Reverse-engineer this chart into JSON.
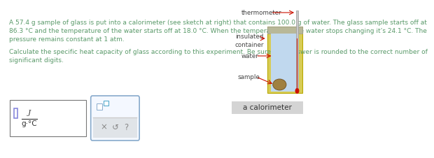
{
  "bg_color": "#ffffff",
  "text_color": "#5a9a6a",
  "main_text_line1": "A 57.4 g sample of glass is put into a calorimeter (see sketch at right) that contains 100.0 g of water. The glass sample starts off at",
  "main_text_line2": "86.3 °C and the temperature of the water starts off at 18.0 °C. When the temperature of the water stops changing it’s 24.1 °C. The",
  "main_text_line3": "pressure remains constant at 1 atm.",
  "calc_text_line1": "Calculate the specific heat capacity of glass according to this experiment. Be sure your answer is rounded to the correct number of",
  "calc_text_line2": "significant digits.",
  "label_thermometer": "thermometer",
  "label_insulated": "insulated\ncontainer",
  "label_water": "water",
  "label_sample": "sample",
  "label_calorimeter": "a calorimeter",
  "arrow_color": "#cc1100",
  "container_outer_color": "#d8cc55",
  "container_outer_edge": "#b8a800",
  "container_inner_color": "#c0d8ee",
  "container_top_color": "#b8b898",
  "thermometer_body_color": "#c8c8c8",
  "thermometer_liquid_color": "#cc1100",
  "sample_color": "#a08040",
  "sample_edge_color": "#705020",
  "calorimeter_label_bg": "#d4d4d4",
  "input_box_border": "#777777",
  "input_box_bg": "#ffffff",
  "answer_box_border": "#88aacc",
  "answer_box_bg": "#f4f8ff",
  "button_bg": "#e0e4e8",
  "text_dark": "#333333",
  "text_label": "#444444"
}
